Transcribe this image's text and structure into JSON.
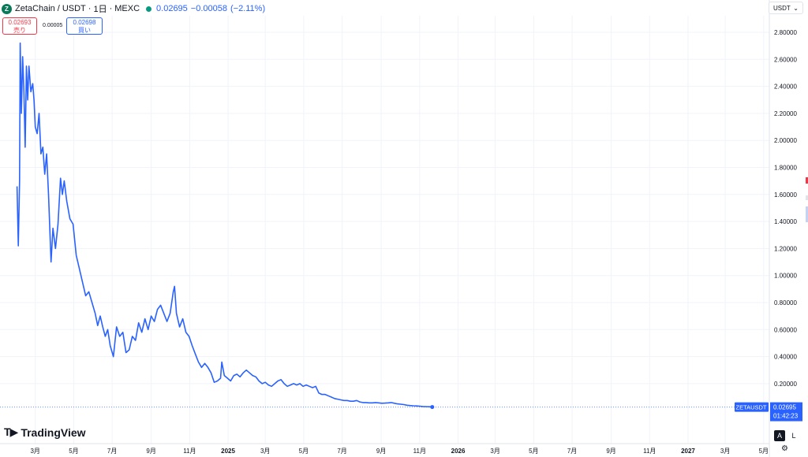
{
  "header": {
    "symbol": "ZetaChain",
    "quote": "USDT",
    "interval": "1日",
    "exchange": "MEXC",
    "price": "0.02695",
    "change": "−0.00058",
    "change_pct": "(−2.11%)",
    "logo_letter": "Z"
  },
  "trade": {
    "sell_price": "0.02693",
    "sell_label": "売り",
    "spread": "0.00005",
    "buy_price": "0.02698",
    "buy_label": "買い"
  },
  "currency_select": "USDT",
  "price_tag": {
    "symbol": "ZETAUSDT",
    "price": "0.02695",
    "countdown": "01:42:23"
  },
  "brand": "TradingView",
  "buttons": {
    "auto": "A",
    "log": "L"
  },
  "colors": {
    "line": "#2962ff",
    "down": "#f23645",
    "up": "#089981",
    "grid": "#f0f3fa"
  },
  "chart_data": {
    "type": "line",
    "series": [
      {
        "values": [
          [
            "2024-02-01",
            1.66
          ],
          [
            "2024-02-03",
            1.22
          ],
          [
            "2024-02-05",
            1.7
          ],
          [
            "2024-02-06",
            2.72
          ],
          [
            "2024-02-08",
            2.2
          ],
          [
            "2024-02-10",
            2.62
          ],
          [
            "2024-02-12",
            2.36
          ],
          [
            "2024-02-14",
            1.95
          ],
          [
            "2024-02-16",
            2.55
          ],
          [
            "2024-02-18",
            2.3
          ],
          [
            "2024-02-20",
            2.55
          ],
          [
            "2024-02-23",
            2.36
          ],
          [
            "2024-02-26",
            2.42
          ],
          [
            "2024-02-28",
            2.3
          ],
          [
            "2024-03-01",
            2.1
          ],
          [
            "2024-03-04",
            2.05
          ],
          [
            "2024-03-07",
            2.2
          ],
          [
            "2024-03-10",
            1.9
          ],
          [
            "2024-03-13",
            1.95
          ],
          [
            "2024-03-16",
            1.75
          ],
          [
            "2024-03-19",
            1.9
          ],
          [
            "2024-03-22",
            1.6
          ],
          [
            "2024-03-26",
            1.1
          ],
          [
            "2024-03-29",
            1.35
          ],
          [
            "2024-04-02",
            1.2
          ],
          [
            "2024-04-06",
            1.38
          ],
          [
            "2024-04-10",
            1.72
          ],
          [
            "2024-04-13",
            1.6
          ],
          [
            "2024-04-16",
            1.7
          ],
          [
            "2024-04-20",
            1.55
          ],
          [
            "2024-04-25",
            1.42
          ],
          [
            "2024-04-30",
            1.38
          ],
          [
            "2024-05-05",
            1.15
          ],
          [
            "2024-05-10",
            1.05
          ],
          [
            "2024-05-15",
            0.95
          ],
          [
            "2024-05-20",
            0.85
          ],
          [
            "2024-05-25",
            0.88
          ],
          [
            "2024-05-30",
            0.8
          ],
          [
            "2024-06-04",
            0.72
          ],
          [
            "2024-06-08",
            0.63
          ],
          [
            "2024-06-12",
            0.7
          ],
          [
            "2024-06-16",
            0.62
          ],
          [
            "2024-06-20",
            0.55
          ],
          [
            "2024-06-24",
            0.6
          ],
          [
            "2024-06-28",
            0.48
          ],
          [
            "2024-07-03",
            0.4
          ],
          [
            "2024-07-08",
            0.62
          ],
          [
            "2024-07-13",
            0.55
          ],
          [
            "2024-07-18",
            0.58
          ],
          [
            "2024-07-23",
            0.43
          ],
          [
            "2024-07-28",
            0.45
          ],
          [
            "2024-08-02",
            0.55
          ],
          [
            "2024-08-07",
            0.52
          ],
          [
            "2024-08-12",
            0.65
          ],
          [
            "2024-08-17",
            0.58
          ],
          [
            "2024-08-22",
            0.68
          ],
          [
            "2024-08-27",
            0.6
          ],
          [
            "2024-09-01",
            0.7
          ],
          [
            "2024-09-06",
            0.66
          ],
          [
            "2024-09-11",
            0.75
          ],
          [
            "2024-09-16",
            0.78
          ],
          [
            "2024-09-21",
            0.72
          ],
          [
            "2024-09-26",
            0.66
          ],
          [
            "2024-10-01",
            0.72
          ],
          [
            "2024-10-06",
            0.88
          ],
          [
            "2024-10-08",
            0.92
          ],
          [
            "2024-10-11",
            0.72
          ],
          [
            "2024-10-16",
            0.62
          ],
          [
            "2024-10-21",
            0.68
          ],
          [
            "2024-10-26",
            0.58
          ],
          [
            "2024-10-31",
            0.55
          ],
          [
            "2024-11-05",
            0.48
          ],
          [
            "2024-11-10",
            0.42
          ],
          [
            "2024-11-15",
            0.36
          ],
          [
            "2024-11-20",
            0.32
          ],
          [
            "2024-11-25",
            0.35
          ],
          [
            "2024-11-30",
            0.32
          ],
          [
            "2024-12-05",
            0.28
          ],
          [
            "2024-12-10",
            0.21
          ],
          [
            "2024-12-15",
            0.22
          ],
          [
            "2024-12-20",
            0.24
          ],
          [
            "2024-12-22",
            0.36
          ],
          [
            "2024-12-26",
            0.26
          ],
          [
            "2024-12-31",
            0.24
          ],
          [
            "2025-01-05",
            0.22
          ],
          [
            "2025-01-10",
            0.26
          ],
          [
            "2025-01-15",
            0.27
          ],
          [
            "2025-01-20",
            0.25
          ],
          [
            "2025-01-25",
            0.28
          ],
          [
            "2025-01-30",
            0.3
          ],
          [
            "2025-02-04",
            0.28
          ],
          [
            "2025-02-09",
            0.26
          ],
          [
            "2025-02-14",
            0.25
          ],
          [
            "2025-02-19",
            0.22
          ],
          [
            "2025-02-24",
            0.2
          ],
          [
            "2025-03-01",
            0.21
          ],
          [
            "2025-03-06",
            0.19
          ],
          [
            "2025-03-11",
            0.18
          ],
          [
            "2025-03-16",
            0.2
          ],
          [
            "2025-03-21",
            0.22
          ],
          [
            "2025-03-26",
            0.23
          ],
          [
            "2025-03-31",
            0.2
          ],
          [
            "2025-04-05",
            0.18
          ],
          [
            "2025-04-10",
            0.19
          ],
          [
            "2025-04-15",
            0.2
          ],
          [
            "2025-04-20",
            0.19
          ],
          [
            "2025-04-25",
            0.2
          ],
          [
            "2025-04-30",
            0.18
          ],
          [
            "2025-05-05",
            0.19
          ],
          [
            "2025-05-10",
            0.18
          ],
          [
            "2025-05-15",
            0.17
          ],
          [
            "2025-05-20",
            0.18
          ],
          [
            "2025-05-25",
            0.13
          ],
          [
            "2025-05-30",
            0.12
          ],
          [
            "2025-06-04",
            0.12
          ],
          [
            "2025-06-09",
            0.11
          ],
          [
            "2025-06-14",
            0.1
          ],
          [
            "2025-06-19",
            0.09
          ],
          [
            "2025-06-24",
            0.085
          ],
          [
            "2025-06-29",
            0.08
          ],
          [
            "2025-07-04",
            0.075
          ],
          [
            "2025-07-09",
            0.075
          ],
          [
            "2025-07-14",
            0.07
          ],
          [
            "2025-07-19",
            0.07
          ],
          [
            "2025-07-24",
            0.075
          ],
          [
            "2025-07-29",
            0.065
          ],
          [
            "2025-08-03",
            0.06
          ],
          [
            "2025-08-08",
            0.06
          ],
          [
            "2025-08-13",
            0.058
          ],
          [
            "2025-08-18",
            0.058
          ],
          [
            "2025-08-23",
            0.06
          ],
          [
            "2025-08-28",
            0.058
          ],
          [
            "2025-09-02",
            0.055
          ],
          [
            "2025-09-07",
            0.056
          ],
          [
            "2025-09-12",
            0.058
          ],
          [
            "2025-09-17",
            0.06
          ],
          [
            "2025-09-22",
            0.055
          ],
          [
            "2025-09-27",
            0.05
          ],
          [
            "2025-10-02",
            0.048
          ],
          [
            "2025-10-07",
            0.045
          ],
          [
            "2025-10-12",
            0.04
          ],
          [
            "2025-10-17",
            0.038
          ],
          [
            "2025-10-22",
            0.036
          ],
          [
            "2025-10-27",
            0.035
          ],
          [
            "2025-11-01",
            0.033
          ],
          [
            "2025-11-06",
            0.031
          ],
          [
            "2025-11-11",
            0.03
          ],
          [
            "2025-11-16",
            0.029
          ],
          [
            "2025-11-21",
            0.027
          ]
        ]
      }
    ],
    "yticks": [
      "2.80000",
      "2.60000",
      "2.40000",
      "2.20000",
      "2.00000",
      "1.80000",
      "1.60000",
      "1.40000",
      "1.20000",
      "1.00000",
      "0.80000",
      "0.60000",
      "0.40000",
      "0.20000"
    ],
    "xticks": [
      {
        "label": "3月",
        "date": "2024-03-01"
      },
      {
        "label": "5月",
        "date": "2024-05-01"
      },
      {
        "label": "7月",
        "date": "2024-07-01"
      },
      {
        "label": "9月",
        "date": "2024-09-01"
      },
      {
        "label": "11月",
        "date": "2024-11-01"
      },
      {
        "label": "2025",
        "date": "2025-01-01"
      },
      {
        "label": "3月",
        "date": "2025-03-01"
      },
      {
        "label": "5月",
        "date": "2025-05-01"
      },
      {
        "label": "7月",
        "date": "2025-07-01"
      },
      {
        "label": "9月",
        "date": "2025-09-01"
      },
      {
        "label": "11月",
        "date": "2025-11-01"
      },
      {
        "label": "2026",
        "date": "2026-01-01"
      },
      {
        "label": "3月",
        "date": "2026-03-01"
      },
      {
        "label": "5月",
        "date": "2026-05-01"
      },
      {
        "label": "7月",
        "date": "2026-07-01"
      },
      {
        "label": "9月",
        "date": "2026-09-01"
      },
      {
        "label": "11月",
        "date": "2026-11-01"
      },
      {
        "label": "2027",
        "date": "2027-01-01"
      },
      {
        "label": "3月",
        "date": "2027-03-01"
      },
      {
        "label": "5月",
        "date": "2027-05-01"
      }
    ],
    "ylim": [
      0,
      2.9
    ],
    "xlim": [
      "2024-01-05",
      "2027-05-10"
    ],
    "grid": true,
    "last_price_line": 0.02695
  }
}
